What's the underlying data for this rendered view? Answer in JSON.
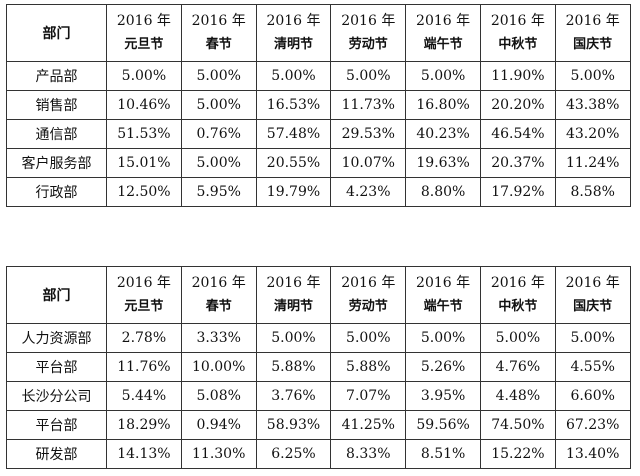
{
  "tables": [
    {
      "header": {
        "dept": "部门",
        "columns": [
          {
            "year": "2016 年",
            "name": "元旦节"
          },
          {
            "year": "2016 年",
            "name": "春节"
          },
          {
            "year": "2016 年",
            "name": "清明节"
          },
          {
            "year": "2016 年",
            "name": "劳动节"
          },
          {
            "year": "2016 年",
            "name": "端午节"
          },
          {
            "year": "2016 年",
            "name": "中秋节"
          },
          {
            "year": "2016 年",
            "name": "国庆节"
          }
        ]
      },
      "rows": [
        {
          "dept": "产品部",
          "values": [
            "5.00%",
            "5.00%",
            "5.00%",
            "5.00%",
            "5.00%",
            "11.90%",
            "5.00%"
          ]
        },
        {
          "dept": "销售部",
          "values": [
            "10.46%",
            "5.00%",
            "16.53%",
            "11.73%",
            "16.80%",
            "20.20%",
            "43.38%"
          ]
        },
        {
          "dept": "通信部",
          "values": [
            "51.53%",
            "0.76%",
            "57.48%",
            "29.53%",
            "40.23%",
            "46.54%",
            "43.20%"
          ]
        },
        {
          "dept": "客户服务部",
          "values": [
            "15.01%",
            "5.00%",
            "20.55%",
            "10.07%",
            "19.63%",
            "20.37%",
            "11.24%"
          ]
        },
        {
          "dept": "行政部",
          "values": [
            "12.50%",
            "5.95%",
            "19.79%",
            "4.23%",
            "8.80%",
            "17.92%",
            "8.58%"
          ]
        }
      ]
    },
    {
      "header": {
        "dept": "部门",
        "columns": [
          {
            "year": "2016 年",
            "name": "元旦节"
          },
          {
            "year": "2016 年",
            "name": "春节"
          },
          {
            "year": "2016 年",
            "name": "清明节"
          },
          {
            "year": "2016 年",
            "name": "劳动节"
          },
          {
            "year": "2016 年",
            "name": "端午节"
          },
          {
            "year": "2016 年",
            "name": "中秋节"
          },
          {
            "year": "2016 年",
            "name": "国庆节"
          }
        ]
      },
      "rows": [
        {
          "dept": "人力资源部",
          "values": [
            "2.78%",
            "3.33%",
            "5.00%",
            "5.00%",
            "5.00%",
            "5.00%",
            "5.00%"
          ]
        },
        {
          "dept": "平台部",
          "values": [
            "11.76%",
            "10.00%",
            "5.88%",
            "5.88%",
            "5.26%",
            "4.76%",
            "4.55%"
          ]
        },
        {
          "dept": "长沙分公司",
          "values": [
            "5.44%",
            "5.08%",
            "3.76%",
            "7.07%",
            "3.95%",
            "4.48%",
            "6.60%"
          ]
        },
        {
          "dept": "平台部",
          "values": [
            "18.29%",
            "0.94%",
            "58.93%",
            "41.25%",
            "59.56%",
            "74.50%",
            "67.23%"
          ]
        },
        {
          "dept": "研发部",
          "values": [
            "14.13%",
            "11.30%",
            "6.25%",
            "8.33%",
            "8.51%",
            "15.22%",
            "13.40%"
          ]
        }
      ]
    }
  ]
}
